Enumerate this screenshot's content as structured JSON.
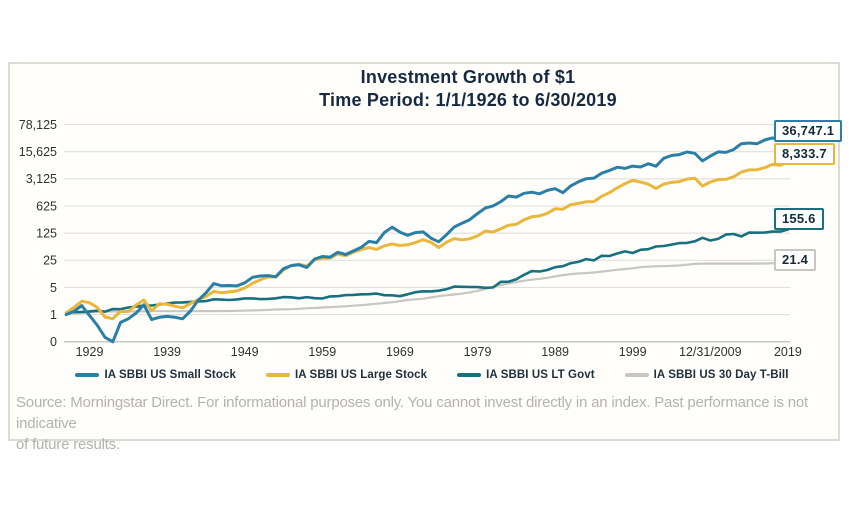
{
  "title": {
    "line1": "Investment Growth of $1",
    "line2": "Time Period: 1/1/1926 to 6/30/2019"
  },
  "footer": {
    "line1": "Source: Morningstar Direct. For informational purposes only. You cannot invest directly in an index. Past performance is not indicative",
    "line2": "of future results."
  },
  "chart_data": {
    "type": "line",
    "title": "Investment Growth of $1",
    "subtitle": "Time Period: 1/1/1926 to 6/30/2019",
    "y_scale": "log-base-5",
    "ylim": [
      0.2,
      78125
    ],
    "grid": true,
    "legend_position": "bottom",
    "y_ticks": [
      {
        "label": "78,125",
        "v": 78125
      },
      {
        "label": "15,625",
        "v": 15625
      },
      {
        "label": "3,125",
        "v": 3125
      },
      {
        "label": "625",
        "v": 625
      },
      {
        "label": "125",
        "v": 125
      },
      {
        "label": "25",
        "v": 25
      },
      {
        "label": "5",
        "v": 5
      },
      {
        "label": "1",
        "v": 1
      },
      {
        "label": "0",
        "v": 0.2
      }
    ],
    "x_ticks": [
      {
        "label": "1929",
        "year": 1929
      },
      {
        "label": "1939",
        "year": 1939
      },
      {
        "label": "1949",
        "year": 1949
      },
      {
        "label": "1959",
        "year": 1959
      },
      {
        "label": "1969",
        "year": 1969
      },
      {
        "label": "1979",
        "year": 1979
      },
      {
        "label": "1989",
        "year": 1989
      },
      {
        "label": "1999",
        "year": 1999
      },
      {
        "label": "12/31/2009",
        "year": 2009
      },
      {
        "label": "2019",
        "year": 2019
      }
    ],
    "x_note": "annual points; final point is 6/30/2019",
    "years": [
      1926,
      1927,
      1928,
      1929,
      1930,
      1931,
      1932,
      1933,
      1934,
      1935,
      1936,
      1937,
      1938,
      1939,
      1940,
      1941,
      1942,
      1943,
      1944,
      1945,
      1946,
      1947,
      1948,
      1949,
      1950,
      1951,
      1952,
      1953,
      1954,
      1955,
      1956,
      1957,
      1958,
      1959,
      1960,
      1961,
      1962,
      1963,
      1964,
      1965,
      1966,
      1967,
      1968,
      1969,
      1970,
      1971,
      1972,
      1973,
      1974,
      1975,
      1976,
      1977,
      1978,
      1979,
      1980,
      1981,
      1982,
      1983,
      1984,
      1985,
      1986,
      1987,
      1988,
      1989,
      1990,
      1991,
      1992,
      1993,
      1994,
      1995,
      1996,
      1997,
      1998,
      1999,
      2000,
      2001,
      2002,
      2003,
      2004,
      2005,
      2006,
      2007,
      2008,
      2009,
      2010,
      2011,
      2012,
      2013,
      2014,
      2015,
      2016,
      2017,
      2018,
      2019
    ],
    "series": [
      {
        "name": "IA SBBI US Small Stock",
        "color": "#2b7fa6",
        "end_label": "36,747.1",
        "end_value": 36747.1,
        "values": [
          1.0,
          1.22,
          1.7,
          0.95,
          0.53,
          0.26,
          0.2,
          0.63,
          0.78,
          1.09,
          1.79,
          0.75,
          0.85,
          0.9,
          0.85,
          0.78,
          1.22,
          2.33,
          3.62,
          6.28,
          5.56,
          5.61,
          5.49,
          6.57,
          9.13,
          9.84,
          10.1,
          9.47,
          15.2,
          18.3,
          19.1,
          16.3,
          26.9,
          31.3,
          30.3,
          40.2,
          35.3,
          43.5,
          53.8,
          76.6,
          71.2,
          130,
          178,
          133,
          110,
          129,
          135,
          93.2,
          74.7,
          114,
          180,
          226,
          278,
          398,
          554,
          630,
          806,
          1131,
          1059,
          1325,
          1417,
          1289,
          1577,
          1742,
          1378,
          2047,
          2620,
          3160,
          3259,
          4364,
          5117,
          6247,
          5793,
          6641,
          6325,
          7683,
          6629,
          10566,
          12474,
          13180,
          15326,
          14203,
          9037,
          12066,
          15486,
          14952,
          17689,
          25159,
          26206,
          24951,
          31351,
          35469,
          31480,
          36747.1
        ]
      },
      {
        "name": "IA SBBI US Large Stock",
        "color": "#e9b73c",
        "end_label": "8,333.7",
        "end_value": 8333.7,
        "values": [
          1.12,
          1.54,
          2.2,
          2.02,
          1.52,
          0.86,
          0.79,
          1.21,
          1.2,
          1.77,
          2.37,
          1.25,
          1.9,
          1.85,
          1.65,
          1.5,
          1.93,
          2.43,
          2.91,
          3.96,
          3.64,
          3.85,
          4.06,
          4.83,
          6.36,
          7.89,
          9.34,
          9.24,
          14.1,
          18.6,
          19.8,
          17.6,
          25.3,
          28.3,
          28.5,
          36.1,
          32.9,
          40.5,
          47.1,
          53,
          47.7,
          59.1,
          65.6,
          60.1,
          62.5,
          71.4,
          85,
          72.5,
          53.3,
          73.1,
          90.6,
          84.1,
          89.6,
          106,
          141,
          134,
          162,
          199,
          211,
          278,
          330,
          348,
          406,
          534,
          518,
          676,
          727,
          800,
          811,
          1114,
          1371,
          1828,
          2351,
          2846,
          2587,
          2279,
          1775,
          2286,
          2535,
          2659,
          3080,
          3246,
          2049,
          2592,
          2982,
          3046,
          3533,
          4677,
          5317,
          5390,
          6035,
          7354,
          7032,
          8333.7
        ]
      },
      {
        "name": "IA SBBI US LT Govt",
        "color": "#17707e",
        "end_label": "155.6",
        "end_value": 155.6,
        "values": [
          1.08,
          1.17,
          1.17,
          1.21,
          1.26,
          1.19,
          1.39,
          1.38,
          1.52,
          1.6,
          1.72,
          1.72,
          1.81,
          1.92,
          2.04,
          2.06,
          2.12,
          2.17,
          2.23,
          2.47,
          2.44,
          2.38,
          2.46,
          2.62,
          2.62,
          2.51,
          2.54,
          2.63,
          2.82,
          2.79,
          2.63,
          2.83,
          2.65,
          2.59,
          2.95,
          2.98,
          3.18,
          3.22,
          3.33,
          3.35,
          3.47,
          3.15,
          3.14,
          2.98,
          3.34,
          3.78,
          3.99,
          3.95,
          4.12,
          4.5,
          5.25,
          5.21,
          5.15,
          5.09,
          4.89,
          4.98,
          6.99,
          7.03,
          8.12,
          10.6,
          13.2,
          12.9,
          14.1,
          16.6,
          17.6,
          21,
          22.7,
          26.9,
          24.8,
          32.6,
          32.3,
          37.4,
          42.3,
          38.5,
          46.6,
          48.3,
          56.8,
          58.4,
          63.4,
          69.3,
          70.1,
          77.1,
          94.7,
          80.8,
          88.8,
          115,
          119,
          103,
          129,
          128,
          129,
          137,
          137,
          155.6
        ]
      },
      {
        "name": "IA SBBI US 30 Day T-Bill",
        "color": "#c9c6c1",
        "end_label": "21.4",
        "end_value": 21.4,
        "values": [
          1.03,
          1.06,
          1.1,
          1.15,
          1.18,
          1.19,
          1.2,
          1.21,
          1.21,
          1.21,
          1.21,
          1.22,
          1.22,
          1.22,
          1.22,
          1.22,
          1.22,
          1.23,
          1.23,
          1.23,
          1.24,
          1.24,
          1.25,
          1.27,
          1.28,
          1.3,
          1.32,
          1.35,
          1.36,
          1.38,
          1.41,
          1.46,
          1.48,
          1.52,
          1.56,
          1.6,
          1.64,
          1.69,
          1.75,
          1.82,
          1.91,
          1.99,
          2.09,
          2.23,
          2.37,
          2.48,
          2.57,
          2.75,
          2.97,
          3.14,
          3.3,
          3.47,
          3.72,
          4.11,
          4.57,
          5.24,
          5.79,
          6.3,
          6.92,
          7.46,
          7.92,
          8.35,
          8.88,
          9.63,
          10.4,
          11,
          11.4,
          11.7,
          12.1,
          12.8,
          13.5,
          14.2,
          14.9,
          15.6,
          16.6,
          17.2,
          17.5,
          17.7,
          17.9,
          18.4,
          19.3,
          20.2,
          20.5,
          20.6,
          20.6,
          20.6,
          20.6,
          20.6,
          20.6,
          20.6,
          20.7,
          20.9,
          21.3,
          21.4
        ]
      }
    ],
    "colors": {
      "title_text": "#152a42",
      "axis_text": "#33322e",
      "grid_line": "#e0dfdb",
      "axis_line": "#c9c8c4",
      "footer_text": "#b5b2ad",
      "panel_border": "#dedbd4"
    }
  }
}
